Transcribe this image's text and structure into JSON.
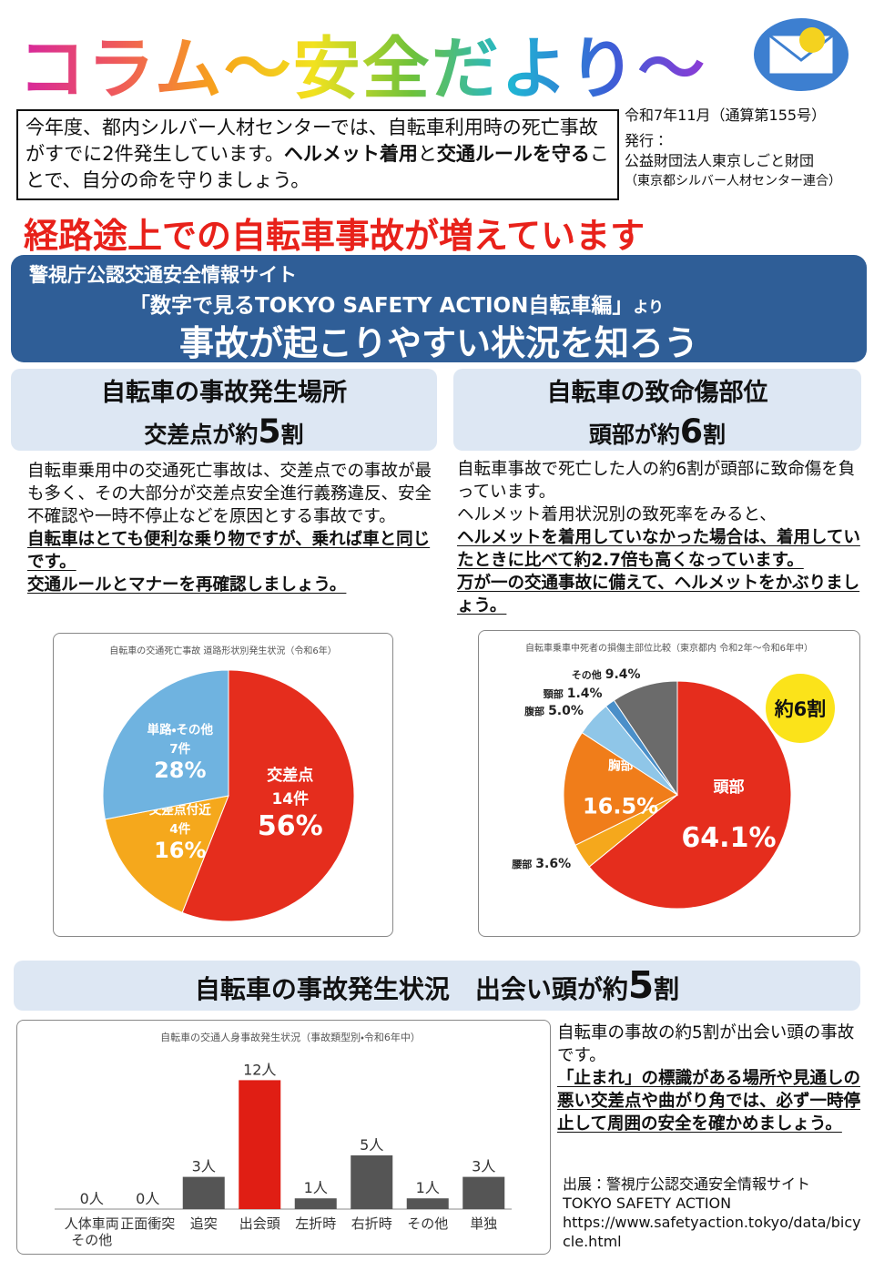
{
  "header": {
    "title": "コラム～安全だより～"
  },
  "intro": {
    "segments": [
      {
        "text": "今年度、都内シルバー人材センターでは、自転車利用時の死亡事故がすでに2件発生しています。"
      },
      {
        "text": "ヘルメット着用",
        "bold": true
      },
      {
        "text": "と"
      },
      {
        "text": "交通ルールを守る",
        "bold": true
      },
      {
        "text": "ことで、自分の命を守りましょう。"
      }
    ]
  },
  "issue": {
    "date": "令和7年11月（通算第155号）",
    "publisher_label": "発行：",
    "publisher": "公益財団法人東京しごと財団",
    "publisher_sub": "（東京都シルバー人材センター連合）"
  },
  "headline": "経路途上での自転車事故が増えています",
  "banner": {
    "line1": "警視庁公認交通安全情報サイト",
    "line2": "「数字で見るTOKYO SAFETY ACTION自転車編」",
    "line2_suffix": "より",
    "line3": "事故が起こりやすい状況を知ろう"
  },
  "location": {
    "heading": "自転車の事故発生場所",
    "summary": [
      {
        "text": "交差点が約"
      },
      {
        "text": "5",
        "big": true
      },
      {
        "text": "割"
      }
    ],
    "body": [
      {
        "text": "自転車乗用中の交通死亡事故は、交差点での事故が最も多く、その大部分が交差点安全進行義務違反、安全不確認や一時不停止などを原因とする事故です。"
      },
      {
        "text": "自転車はとても便利な乗り物ですが、乗れば車と同じです。",
        "bold": true,
        "block": true
      },
      {
        "text": "交通ルールとマナーを再確認しましょう。",
        "bold": true,
        "block": true
      }
    ]
  },
  "injury": {
    "heading": "自転車の致命傷部位",
    "summary": [
      {
        "text": "頭部が約"
      },
      {
        "text": "6",
        "big": true
      },
      {
        "text": "割"
      }
    ],
    "body": [
      {
        "text": "自転車事故で死亡した人の約6割が頭部に致命傷を負っています。"
      },
      {
        "text": "ヘルメット着用状況別の致死率をみると、",
        "block": true
      },
      {
        "text": "ヘルメットを着用していなかった場合は、着用していたときに比べて約2.7倍も高くなっています。",
        "bold": true
      },
      {
        "text": "万が一の交通事故に備えて、ヘルメットをかぶりましょう。",
        "bold": true,
        "block": true
      }
    ]
  },
  "situation": {
    "heading": [
      {
        "text": "自転車の事故発生状況　出会い頭が約"
      },
      {
        "text": "5",
        "big": true
      },
      {
        "text": "割"
      }
    ],
    "body": [
      {
        "text": "自転車の事故の約5割が出会い頭の事故です。"
      },
      {
        "text": "「止まれ」の標識がある場所や見通しの悪い交差点や曲がり角では、必ず一時停止して周囲の安全を確かめましょう。",
        "bold": true,
        "block": true
      }
    ],
    "source": [
      "出展：警視庁公認交通安全情報サイト",
      "TOKYO SAFETY ACTION",
      "https://www.safetyaction.tokyo/data/bicycle.html"
    ]
  },
  "charts": {
    "location_pie": {
      "type": "pie",
      "title": "自転車の交通死亡事故 道路形状別発生状況（令和6年）",
      "categories": [
        "交差点",
        "交差点付近",
        "単路・その他"
      ],
      "counts": [
        "14件",
        "4件",
        "7件"
      ],
      "values": [
        56,
        16,
        28
      ],
      "value_labels": [
        "56%",
        "16%",
        "28%"
      ],
      "colors": [
        "#e52d1d",
        "#f5a81c",
        "#6fb3e0"
      ]
    },
    "injury_pie": {
      "type": "pie",
      "title": "自転車乗車中死者の損傷主部位比較（東京都内 令和2年～令和6年中）",
      "categories": [
        "頭部",
        "腰部",
        "胸部",
        "腹部",
        "頸部",
        "その他"
      ],
      "values": [
        64.1,
        3.6,
        16.5,
        5.0,
        1.4,
        9.4
      ],
      "value_labels": [
        "64.1%",
        "3.6%",
        "16.5%",
        "5.0%",
        "1.4%",
        "9.4%"
      ],
      "colors": [
        "#e52d1d",
        "#f5a81c",
        "#f07d1a",
        "#8fc6e8",
        "#4a8fc9",
        "#6b6b6b"
      ],
      "badge": "約6割"
    },
    "accident_bar": {
      "type": "bar",
      "title": "自転車の交通人身事故発生状況（事故類型別・令和6年中）",
      "categories": [
        "人体車両その他",
        "正面衝突",
        "追突",
        "出会頭",
        "左折時",
        "右折時",
        "その他",
        "単独"
      ],
      "values": [
        0,
        0,
        3,
        12,
        1,
        5,
        1,
        3
      ],
      "value_labels": [
        "0人",
        "0人",
        "3人",
        "12人",
        "1人",
        "5人",
        "1人",
        "3人"
      ],
      "colors": [
        "#555555",
        "#555555",
        "#555555",
        "#e01e14",
        "#555555",
        "#555555",
        "#555555",
        "#555555"
      ]
    }
  }
}
